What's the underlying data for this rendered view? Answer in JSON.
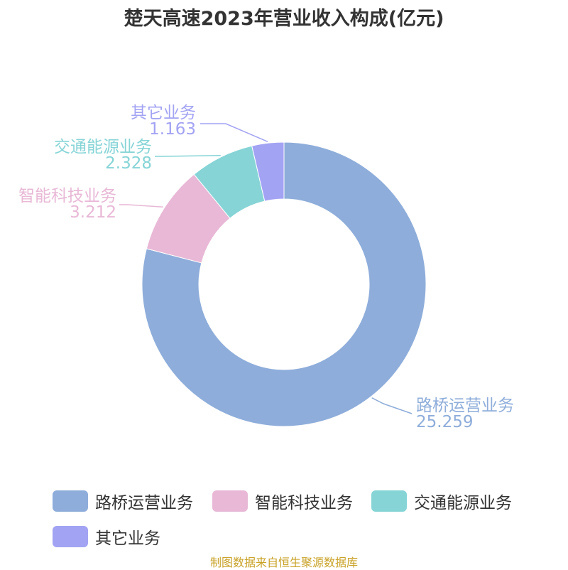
{
  "title": "楚天高速2023年营业收入构成(亿元)",
  "source": "制图数据来自恒生聚源数据库",
  "chart_data": {
    "type": "pie",
    "donut": true,
    "title": "楚天高速2023年营业收入构成(亿元)",
    "legend_position": "bottom",
    "slices": [
      {
        "name": "路桥运营业务",
        "value": 25.259,
        "label": "25.259",
        "color": "#8eadda"
      },
      {
        "name": "智能科技业务",
        "value": 3.212,
        "label": "3.212",
        "color": "#e8b8d6"
      },
      {
        "name": "交通能源业务",
        "value": 2.328,
        "label": "2.328",
        "color": "#86d4d6"
      },
      {
        "name": "其它业务",
        "value": 1.163,
        "label": "1.163",
        "color": "#a3a3f4"
      }
    ]
  }
}
